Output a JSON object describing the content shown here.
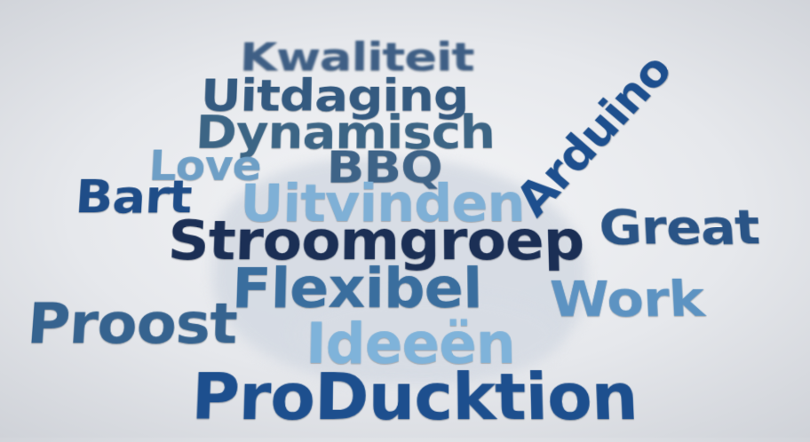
{
  "words": [
    {
      "text": "Kwaliteit",
      "color": "#3f5f85"
    },
    {
      "text": "Uitdaging",
      "color": "#345a80"
    },
    {
      "text": "Dynamisch",
      "color": "#3c6585"
    },
    {
      "text": "Love",
      "color": "#6e9fc6"
    },
    {
      "text": "BBQ",
      "color": "#3e6387"
    },
    {
      "text": "Arduino",
      "color": "#1d4f8e"
    },
    {
      "text": "Bart",
      "color": "#1f4d88"
    },
    {
      "text": "Uitvinden",
      "color": "#7fb0d6"
    },
    {
      "text": "Great",
      "color": "#2a5486"
    },
    {
      "text": "Stroomgroep",
      "color": "#1b2f55"
    },
    {
      "text": "Flexibel",
      "color": "#3a6e9e"
    },
    {
      "text": "Work",
      "color": "#5d93c2"
    },
    {
      "text": "Proost",
      "color": "#36638f"
    },
    {
      "text": "Ideeën",
      "color": "#7fb3da"
    },
    {
      "text": "ProDucktion",
      "color": "#1d4f8e"
    }
  ],
  "background_color": "#e6e8ec"
}
